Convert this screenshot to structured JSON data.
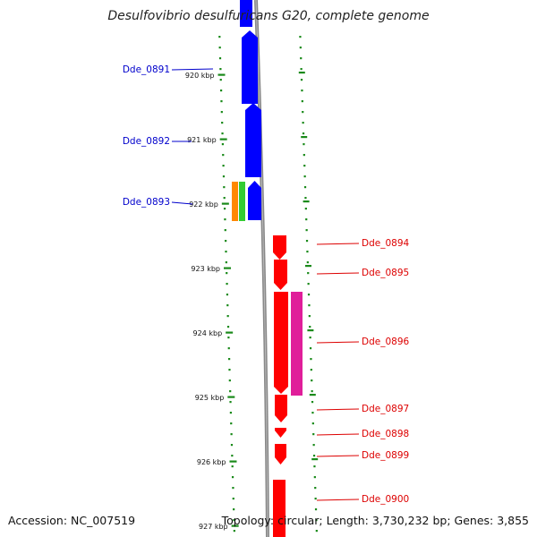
{
  "title": "Desulfovibrio desulfuricans G20, complete genome",
  "footer": {
    "accession": "Accession: NC_007519",
    "topology": "Topology: circular; Length: 3,730,232 bp; Genes: 3,855"
  },
  "colors": {
    "forward_strand": "#0000ff",
    "reverse_strand": "#ff0000",
    "left_label": "#0000cc",
    "right_label": "#dd0000",
    "scale_dots": "#1a8a1a",
    "backbone": "#888888",
    "rna_orange": "#ff8800",
    "rna_green": "#33cc33",
    "magenta": "#e01e9a"
  },
  "scale_ticks": [
    "920 kbp",
    "921 kbp",
    "922 kbp",
    "923 kbp",
    "924 kbp",
    "925 kbp",
    "926 kbp",
    "927 kbp"
  ],
  "genes_left": [
    {
      "name": "Dde_0891",
      "strand": "+"
    },
    {
      "name": "Dde_0892",
      "strand": "+"
    },
    {
      "name": "Dde_0893",
      "strand": "+"
    }
  ],
  "genes_right": [
    {
      "name": "Dde_0894",
      "strand": "-"
    },
    {
      "name": "Dde_0895",
      "strand": "-"
    },
    {
      "name": "Dde_0896",
      "strand": "-"
    },
    {
      "name": "Dde_0897",
      "strand": "-"
    },
    {
      "name": "Dde_0898",
      "strand": "-"
    },
    {
      "name": "Dde_0899",
      "strand": "-"
    },
    {
      "name": "Dde_0900",
      "strand": "-"
    }
  ]
}
